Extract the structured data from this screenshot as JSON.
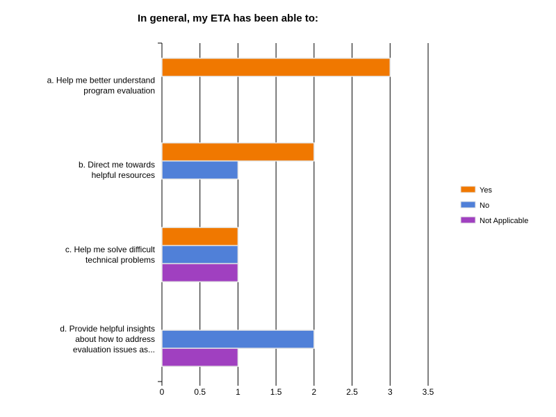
{
  "chart_data": {
    "type": "bar",
    "orientation": "horizontal",
    "title": "In general, my ETA has been able to:",
    "categories": [
      [
        "a. Help me better understand",
        "program evaluation"
      ],
      [
        "b. Direct me towards",
        "helpful resources"
      ],
      [
        "c. Help me solve difficult",
        "technical problems"
      ],
      [
        "d. Provide helpful insights",
        "about how to address",
        "evaluation issues as..."
      ]
    ],
    "series": [
      {
        "name": "Yes",
        "color": "#f07800",
        "values": [
          3,
          2,
          1,
          0
        ]
      },
      {
        "name": "No",
        "color": "#5080d8",
        "values": [
          0,
          1,
          1,
          2
        ]
      },
      {
        "name": "Not Applicable",
        "color": "#a040c0",
        "values": [
          0,
          0,
          1,
          1
        ]
      }
    ],
    "xlim": [
      0,
      3.5
    ],
    "xticks": [
      "0",
      "0.5",
      "1",
      "1.5",
      "2",
      "2.5",
      "3",
      "3.5"
    ],
    "grid": true,
    "legend": "right"
  }
}
